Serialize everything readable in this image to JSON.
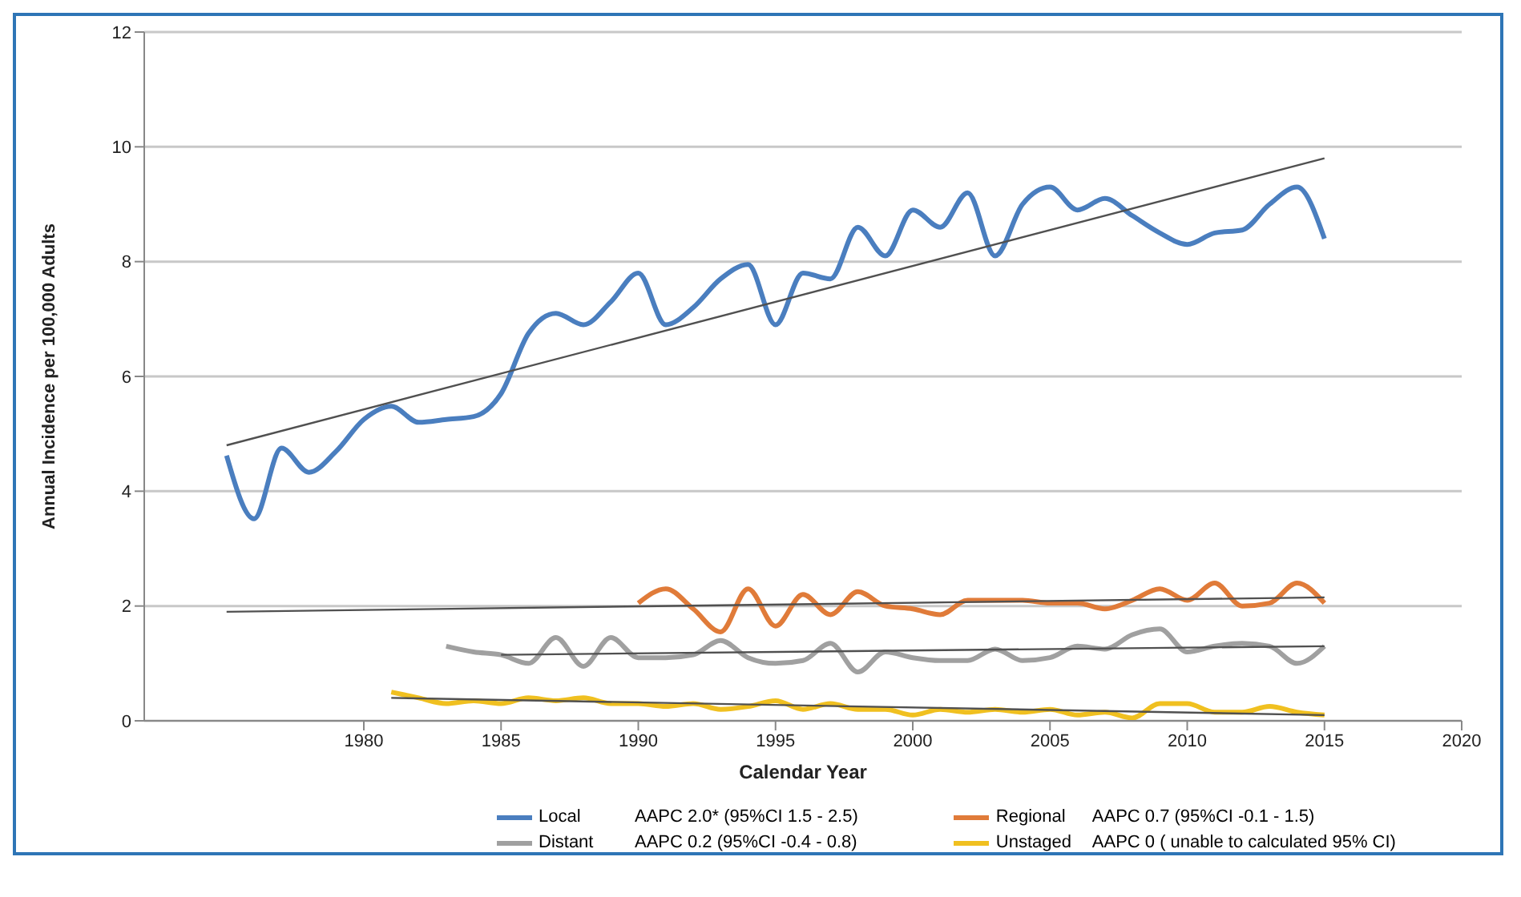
{
  "chart_data": {
    "type": "line",
    "xlabel": "Calendar Year",
    "ylabel": "Annual Incidence per 100,000 Adults",
    "xlim": [
      1972,
      2020
    ],
    "xticks": [
      1980,
      1985,
      1990,
      1995,
      2000,
      2005,
      2010,
      2015,
      2020
    ],
    "ylim": [
      0,
      12
    ],
    "yticks": [
      0,
      2,
      4,
      6,
      8,
      10,
      12
    ],
    "grid": "y",
    "legend": "bottom",
    "marker": "none",
    "line_style": "solid",
    "x": [
      1975,
      1976,
      1977,
      1978,
      1979,
      1980,
      1981,
      1982,
      1983,
      1984,
      1985,
      1986,
      1987,
      1988,
      1989,
      1990,
      1991,
      1992,
      1993,
      1994,
      1995,
      1996,
      1997,
      1998,
      1999,
      2000,
      2001,
      2002,
      2003,
      2004,
      2005,
      2006,
      2007,
      2008,
      2009,
      2010,
      2011,
      2012,
      2013,
      2014,
      2015
    ],
    "series": [
      {
        "name": "Local",
        "color": "#4a7ebf",
        "values": [
          4.62,
          3.52,
          4.75,
          4.33,
          4.7,
          5.25,
          5.48,
          5.2,
          5.25,
          5.3,
          5.7,
          6.75,
          7.1,
          6.9,
          7.3,
          7.8,
          6.9,
          7.2,
          7.7,
          7.95,
          6.9,
          7.8,
          7.7,
          8.6,
          8.1,
          8.9,
          8.6,
          9.2,
          8.1,
          9.0,
          9.3,
          8.9,
          9.1,
          8.8,
          8.5,
          8.3,
          8.5,
          8.55,
          9.0,
          9.3,
          8.4
        ]
      },
      {
        "name": "Regional",
        "color": "#e07b39",
        "values": [
          null,
          null,
          null,
          null,
          null,
          null,
          null,
          null,
          null,
          null,
          null,
          null,
          null,
          null,
          null,
          2.05,
          2.3,
          1.95,
          1.55,
          2.3,
          1.65,
          2.2,
          1.85,
          2.25,
          2.0,
          1.95,
          1.85,
          2.1,
          2.1,
          2.1,
          2.05,
          2.05,
          1.95,
          2.1,
          2.3,
          2.1,
          2.4,
          2.0,
          2.05,
          2.4,
          2.05
        ]
      },
      {
        "name": "Distant",
        "color": "#a0a0a0",
        "values": [
          null,
          null,
          null,
          null,
          null,
          null,
          null,
          null,
          1.3,
          1.2,
          1.15,
          1.0,
          1.45,
          0.95,
          1.45,
          1.1,
          1.1,
          1.15,
          1.4,
          1.1,
          1.0,
          1.05,
          1.35,
          0.85,
          1.2,
          1.1,
          1.05,
          1.05,
          1.25,
          1.05,
          1.1,
          1.3,
          1.25,
          1.5,
          1.6,
          1.2,
          1.3,
          1.35,
          1.3,
          1.0,
          1.3
        ]
      },
      {
        "name": "Unstaged",
        "color": "#f0c020",
        "values": [
          null,
          null,
          null,
          null,
          null,
          null,
          0.5,
          0.4,
          0.3,
          0.35,
          0.3,
          0.4,
          0.35,
          0.4,
          0.3,
          0.3,
          0.25,
          0.3,
          0.2,
          0.25,
          0.35,
          0.2,
          0.3,
          0.2,
          0.2,
          0.1,
          0.2,
          0.15,
          0.2,
          0.15,
          0.2,
          0.1,
          0.15,
          0.05,
          0.3,
          0.3,
          0.15,
          0.15,
          0.25,
          0.15,
          0.1
        ]
      },
      {
        "type": "line",
        "color": "#505050",
        "x": [
          1975,
          2015
        ],
        "values": [
          4.8,
          9.8
        ]
      },
      {
        "type": "line",
        "color": "#505050",
        "x": [
          1975,
          2015
        ],
        "values": [
          1.9,
          2.15
        ]
      },
      {
        "type": "line",
        "color": "#505050",
        "x": [
          1985,
          2015
        ],
        "values": [
          1.15,
          1.3
        ]
      },
      {
        "type": "line",
        "color": "#505050",
        "x": [
          1981,
          2015
        ],
        "values": [
          0.4,
          0.1
        ]
      }
    ],
    "annotations": [
      "AAPC 2.0* (95%CI 1.5 - 2.5)",
      "AAPC 0.7 (95%CI -0.1 - 1.5)",
      "AAPC 0.2 (95%CI -0.4 - 0.8)",
      "AAPC 0 ( unable to calculated 95% CI)"
    ]
  }
}
